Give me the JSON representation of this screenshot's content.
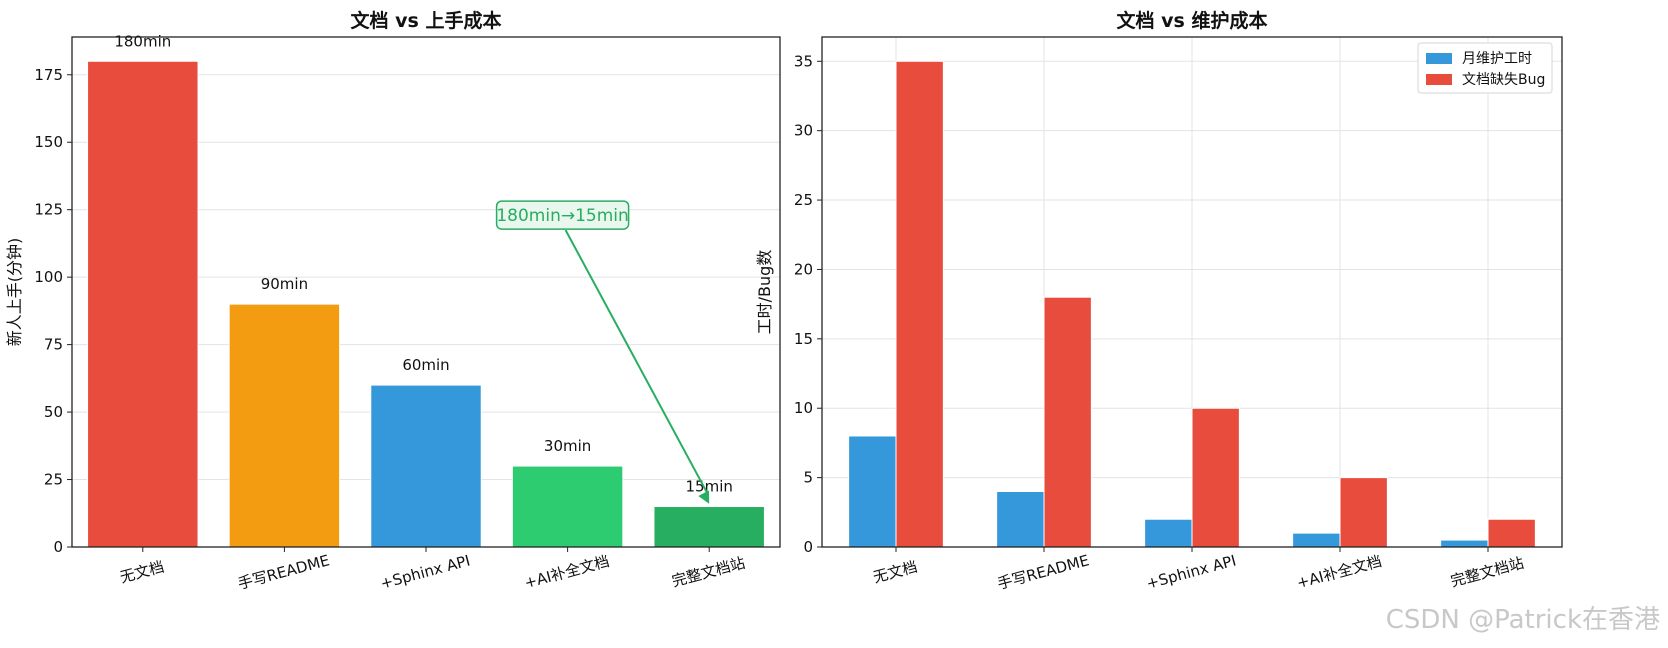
{
  "chart_data": [
    {
      "type": "bar",
      "title": "文档 vs 上手成本",
      "xlabel": "",
      "ylabel": "新人上手(分钟)",
      "categories": [
        "无文档",
        "手写README",
        "+Sphinx API",
        "+AI补全文档",
        "完整文档站"
      ],
      "values": [
        180,
        90,
        60,
        30,
        15
      ],
      "value_labels": [
        "180min",
        "90min",
        "60min",
        "30min",
        "15min"
      ],
      "colors": [
        "#e74c3c",
        "#f39c12",
        "#3498db",
        "#2ecc71",
        "#27ae60"
      ],
      "ylim": [
        0,
        189
      ],
      "yticks": [
        0,
        25,
        50,
        75,
        100,
        125,
        150,
        175
      ],
      "grid": "horizontal",
      "annotation": {
        "text": "180min→15min",
        "text_at": {
          "category_index": 3,
          "y": 123
        },
        "arrow_to": {
          "category_index": 4,
          "y": 16
        },
        "color": "#27ae60"
      }
    },
    {
      "type": "bar",
      "title": "文档 vs 维护成本",
      "xlabel": "",
      "ylabel": "工时/Bug数",
      "categories": [
        "无文档",
        "手写README",
        "+Sphinx API",
        "+AI补全文档",
        "完整文档站"
      ],
      "series": [
        {
          "name": "月维护工时",
          "values": [
            8,
            4,
            2,
            1,
            0.5
          ],
          "color": "#3498db"
        },
        {
          "name": "文档缺失Bug",
          "values": [
            35,
            18,
            10,
            5,
            2
          ],
          "color": "#e74c3c"
        }
      ],
      "ylim": [
        0,
        36.75
      ],
      "yticks": [
        0,
        5,
        10,
        15,
        20,
        25,
        30,
        35
      ],
      "grid": "both",
      "legend": "top-right"
    }
  ],
  "watermark": "CSDN @Patrick在香港"
}
